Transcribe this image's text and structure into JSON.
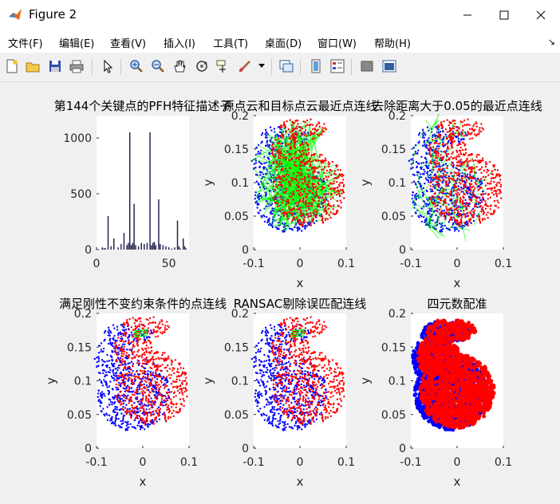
{
  "window": {
    "title": "Figure 2"
  },
  "menu": [
    "文件(F)",
    "编辑(E)",
    "查看(V)",
    "插入(I)",
    "工具(T)",
    "桌面(D)",
    "窗口(W)",
    "帮助(H)"
  ],
  "toolbar_icons": [
    "new-figure-icon",
    "open-icon",
    "save-icon",
    "print-icon",
    "pointer-icon",
    "zoom-in-icon",
    "zoom-out-icon",
    "pan-icon",
    "rotate-3d-icon",
    "data-cursor-icon",
    "brush-icon",
    "link-plot-icon",
    "colorbar-icon",
    "legend-icon",
    "hide-plot-tools-icon",
    "show-plot-tools-icon"
  ],
  "colors": {
    "blue": "#0000ff",
    "red": "#ff0000",
    "green": "#00ff00",
    "bars": "#1f1f4d"
  },
  "subplots": [
    {
      "title": "第144个关键点的PFH特征描述子",
      "xlabel": "",
      "ylabel": "",
      "xticks": [
        "0",
        "50"
      ],
      "yticks": [
        "0",
        "500",
        "1000"
      ]
    },
    {
      "title": "源点云和目标点云最近点连线",
      "xlabel": "x",
      "ylabel": "y",
      "xticks": [
        "-0.1",
        "0",
        "0.1"
      ],
      "yticks": [
        "0",
        "0.05",
        "0.1",
        "0.15",
        "0.2"
      ]
    },
    {
      "title": "去除距离大于0.05的最近点连线",
      "xlabel": "x",
      "ylabel": "y",
      "xticks": [
        "-0.1",
        "0",
        "0.1"
      ],
      "yticks": [
        "0",
        "0.05",
        "0.1",
        "0.15",
        "0.2"
      ]
    },
    {
      "title": "满足刚性不变约束条件的点连线",
      "xlabel": "x",
      "ylabel": "y",
      "xticks": [
        "-0.1",
        "0",
        "0.1"
      ],
      "yticks": [
        "0",
        "0.05",
        "0.1",
        "0.15",
        "0.2"
      ]
    },
    {
      "title": "RANSAC剔除误匹配连线",
      "xlabel": "x",
      "ylabel": "y",
      "xticks": [
        "-0.1",
        "0",
        "0.1"
      ],
      "yticks": [
        "0",
        "0.05",
        "0.1",
        "0.15",
        "0.2"
      ]
    },
    {
      "title": "四元数配准",
      "xlabel": "x",
      "ylabel": "y",
      "xticks": [
        "-0.1",
        "0",
        "0.1"
      ],
      "yticks": [
        "0",
        "0.05",
        "0.1",
        "0.15",
        "0.2"
      ]
    }
  ],
  "chart_data": [
    {
      "type": "bar",
      "title": "第144个关键点的PFH特征描述子",
      "xlim": [
        0,
        64
      ],
      "ylim": [
        0,
        1200
      ],
      "x": [
        4,
        5,
        6,
        8,
        10,
        12,
        15,
        17,
        19,
        21,
        22,
        23,
        24,
        25,
        26,
        27,
        29,
        31,
        33,
        35,
        37,
        38,
        39,
        40,
        41,
        43,
        44,
        46,
        48,
        50,
        52,
        54,
        56,
        57,
        58,
        60,
        61,
        62
      ],
      "values": [
        20,
        10,
        15,
        300,
        30,
        100,
        20,
        50,
        150,
        40,
        60,
        1050,
        40,
        60,
        410,
        40,
        30,
        60,
        50,
        60,
        1050,
        40,
        60,
        70,
        40,
        450,
        50,
        40,
        30,
        20,
        10,
        20,
        260,
        30,
        10,
        100,
        30,
        10
      ]
    },
    {
      "type": "scatter",
      "title": "源点云和目标点云最近点连线",
      "xlim": [
        -0.1,
        0.1
      ],
      "ylim": [
        0,
        0.2
      ]
    },
    {
      "type": "scatter",
      "title": "去除距离大于0.05的最近点连线",
      "xlim": [
        -0.1,
        0.1
      ],
      "ylim": [
        0,
        0.2
      ]
    },
    {
      "type": "scatter",
      "title": "满足刚性不变约束条件的点连线",
      "xlim": [
        -0.1,
        0.1
      ],
      "ylim": [
        0,
        0.2
      ]
    },
    {
      "type": "scatter",
      "title": "RANSAC剔除误匹配连线",
      "xlim": [
        -0.1,
        0.1
      ],
      "ylim": [
        0,
        0.2
      ]
    },
    {
      "type": "scatter",
      "title": "四元数配准",
      "xlim": [
        -0.1,
        0.1
      ],
      "ylim": [
        0,
        0.2
      ]
    }
  ]
}
